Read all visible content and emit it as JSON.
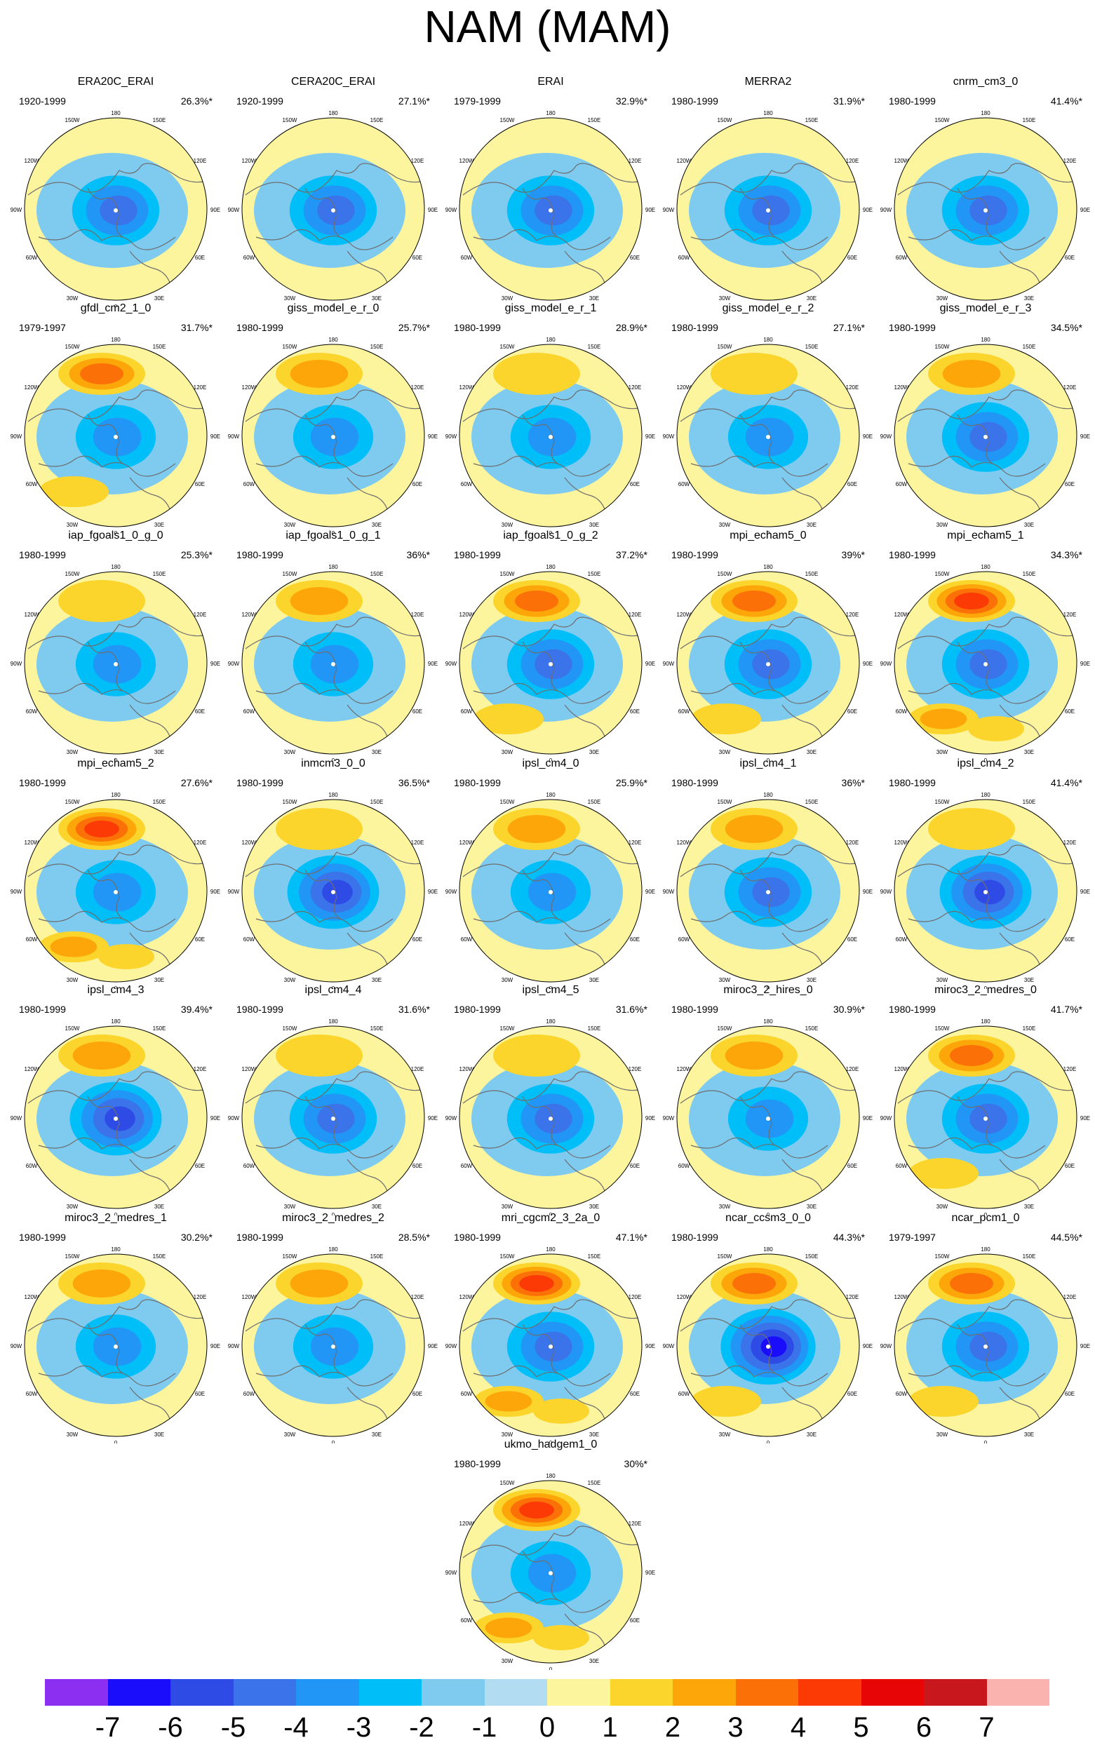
{
  "title": "NAM (MAM)",
  "map_labels": {
    "top": "180",
    "top_left": "150W",
    "top_right": "150E",
    "upper_left": "120W",
    "upper_right": "120E",
    "left": "90W",
    "right": "90E",
    "lower_left": "60W",
    "lower_right": "60E",
    "bottom_left": "30W",
    "bottom_right": "30E",
    "bottom": "0"
  },
  "panels": [
    {
      "name": "ERA20C_ERAI",
      "period": "1920-1999",
      "pct": "26.3%*",
      "low": -4,
      "high": 0
    },
    {
      "name": "CERA20C_ERAI",
      "period": "1920-1999",
      "pct": "27.1%*",
      "low": -4,
      "high": 0
    },
    {
      "name": "ERAI",
      "period": "1979-1999",
      "pct": "32.9%*",
      "low": -4,
      "high": 1
    },
    {
      "name": "MERRA2",
      "period": "1980-1999",
      "pct": "31.9%*",
      "low": -4,
      "high": 1
    },
    {
      "name": "cnrm_cm3_0",
      "period": "1980-1999",
      "pct": "41.4%*",
      "low": -4,
      "high": 1
    },
    {
      "name": "gfdl_cm2_1_0",
      "period": "1979-1997",
      "pct": "31.7%*",
      "low": -3,
      "high": 4
    },
    {
      "name": "giss_model_e_r_0",
      "period": "1980-1999",
      "pct": "25.7%*",
      "low": -3,
      "high": 3
    },
    {
      "name": "giss_model_e_r_1",
      "period": "1980-1999",
      "pct": "28.9%*",
      "low": -3,
      "high": 2
    },
    {
      "name": "giss_model_e_r_2",
      "period": "1980-1999",
      "pct": "27.1%*",
      "low": -3,
      "high": 2
    },
    {
      "name": "giss_model_e_r_3",
      "period": "1980-1999",
      "pct": "34.5%*",
      "low": -4,
      "high": 3
    },
    {
      "name": "iap_fgoals1_0_g_0",
      "period": "1980-1999",
      "pct": "25.3%*",
      "low": -3,
      "high": 2
    },
    {
      "name": "iap_fgoals1_0_g_1",
      "period": "1980-1999",
      "pct": "36%*",
      "low": -3,
      "high": 3
    },
    {
      "name": "iap_fgoals1_0_g_2",
      "period": "1980-1999",
      "pct": "37.2%*",
      "low": -4,
      "high": 4
    },
    {
      "name": "mpi_echam5_0",
      "period": "1980-1999",
      "pct": "39%*",
      "low": -4,
      "high": 4
    },
    {
      "name": "mpi_echam5_1",
      "period": "1980-1999",
      "pct": "34.3%*",
      "low": -4,
      "high": 5
    },
    {
      "name": "mpi_echam5_2",
      "period": "1980-1999",
      "pct": "27.6%*",
      "low": -3,
      "high": 5
    },
    {
      "name": "inmcm3_0_0",
      "period": "1980-1999",
      "pct": "36.5%*",
      "low": -5,
      "high": 2
    },
    {
      "name": "ipsl_cm4_0",
      "period": "1980-1999",
      "pct": "25.9%*",
      "low": -3,
      "high": 3
    },
    {
      "name": "ipsl_cm4_1",
      "period": "1980-1999",
      "pct": "36%*",
      "low": -4,
      "high": 3
    },
    {
      "name": "ipsl_cm4_2",
      "period": "1980-1999",
      "pct": "41.4%*",
      "low": -5,
      "high": 2
    },
    {
      "name": "ipsl_cm4_3",
      "period": "1980-1999",
      "pct": "39.4%*",
      "low": -5,
      "high": 3
    },
    {
      "name": "ipsl_cm4_4",
      "period": "1980-1999",
      "pct": "31.6%*",
      "low": -4,
      "high": 2
    },
    {
      "name": "ipsl_cm4_5",
      "period": "1980-1999",
      "pct": "31.6%*",
      "low": -4,
      "high": 2
    },
    {
      "name": "miroc3_2_hires_0",
      "period": "1980-1999",
      "pct": "30.9%*",
      "low": -3,
      "high": 3
    },
    {
      "name": "miroc3_2_medres_0",
      "period": "1980-1999",
      "pct": "41.7%*",
      "low": -4,
      "high": 4
    },
    {
      "name": "miroc3_2_medres_1",
      "period": "1980-1999",
      "pct": "30.2%*",
      "low": -3,
      "high": 3
    },
    {
      "name": "miroc3_2_medres_2",
      "period": "1980-1999",
      "pct": "28.5%*",
      "low": -3,
      "high": 3
    },
    {
      "name": "mri_cgcm2_3_2a_0",
      "period": "1980-1999",
      "pct": "47.1%*",
      "low": -4,
      "high": 5
    },
    {
      "name": "ncar_ccsm3_0_0",
      "period": "1980-1999",
      "pct": "44.3%*",
      "low": -6,
      "high": 4
    },
    {
      "name": "ncar_pcm1_0",
      "period": "1979-1997",
      "pct": "44.5%*",
      "low": -4,
      "high": 4
    },
    {
      "name": "ukmo_hadgem1_0",
      "period": "1980-1999",
      "pct": "30%*",
      "low": -3,
      "high": 5
    }
  ],
  "colorbar": {
    "colors": [
      "#8c2ff0",
      "#1a0dfb",
      "#2e4be6",
      "#3a73ea",
      "#2196f7",
      "#00bff8",
      "#7fcbf0",
      "#b2dcf2",
      "#fdf59e",
      "#fcd52c",
      "#fda60a",
      "#fc7008",
      "#fb3a06",
      "#e80506",
      "#c8181d",
      "#fbb3b0"
    ],
    "ticks": [
      "-7",
      "-6",
      "-5",
      "-4",
      "-3",
      "-2",
      "-1",
      "0",
      "1",
      "2",
      "3",
      "4",
      "5",
      "6",
      "7"
    ]
  }
}
